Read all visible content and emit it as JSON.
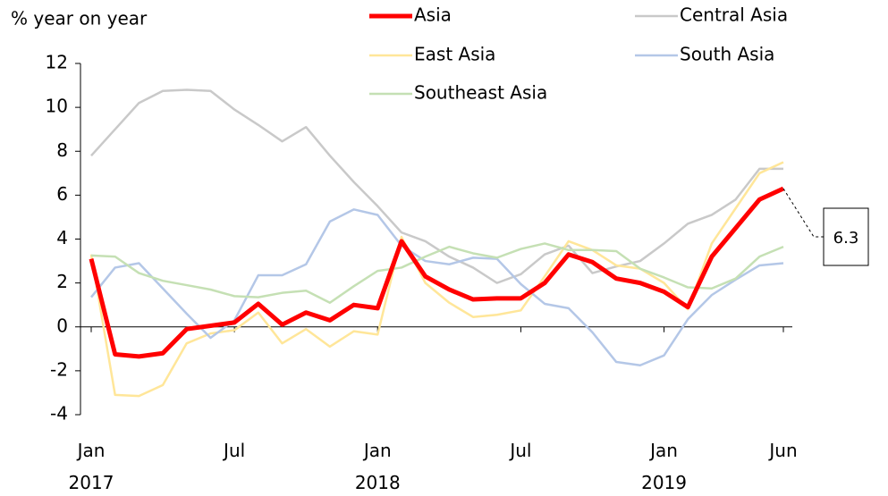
{
  "chart_data": {
    "type": "line",
    "y_label": "% year on year",
    "categories": [
      "Jan 2017",
      null,
      null,
      null,
      null,
      null,
      "Jul",
      null,
      null,
      null,
      null,
      null,
      "Jan 2018",
      null,
      null,
      null,
      null,
      null,
      "Jul",
      null,
      null,
      null,
      null,
      null,
      "Jan 2019",
      null,
      null,
      null,
      null,
      "Jun"
    ],
    "series": [
      {
        "name": "Asia",
        "color": "#ff0000",
        "values": [
          3.1,
          -1.25,
          -1.35,
          -1.2,
          -0.1,
          0.05,
          0.2,
          1.05,
          0.1,
          0.65,
          0.3,
          1.0,
          0.85,
          3.9,
          2.3,
          1.7,
          1.25,
          1.3,
          1.3,
          2.0,
          3.3,
          2.95,
          2.2,
          2.0,
          1.6,
          0.9,
          3.2,
          4.5,
          5.8,
          6.3
        ]
      },
      {
        "name": "Central Asia",
        "color": "#c9c9c9",
        "values": [
          7.8,
          9.0,
          10.2,
          10.75,
          10.8,
          10.75,
          9.9,
          9.2,
          8.45,
          9.1,
          7.8,
          6.6,
          5.5,
          4.3,
          3.9,
          3.2,
          2.7,
          2.0,
          2.4,
          3.3,
          3.7,
          2.45,
          2.75,
          3.0,
          3.8,
          4.7,
          5.1,
          5.8,
          7.2,
          7.2
        ]
      },
      {
        "name": "East Asia",
        "color": "#ffe699",
        "values": [
          3.3,
          -3.1,
          -3.15,
          -2.65,
          -0.75,
          -0.3,
          -0.15,
          0.65,
          -0.75,
          -0.1,
          -0.9,
          -0.2,
          -0.35,
          4.1,
          2.0,
          1.1,
          0.45,
          0.55,
          0.75,
          2.3,
          3.9,
          3.5,
          2.8,
          2.65,
          2.0,
          0.8,
          3.8,
          5.4,
          7.0,
          7.5
        ]
      },
      {
        "name": "South Asia",
        "color": "#b4c7e7",
        "values": [
          1.35,
          2.7,
          2.9,
          1.75,
          0.6,
          -0.5,
          0.3,
          2.35,
          2.35,
          2.85,
          4.8,
          5.35,
          5.1,
          3.7,
          3.0,
          2.85,
          3.15,
          3.1,
          1.95,
          1.05,
          0.85,
          -0.25,
          -1.6,
          -1.75,
          -1.3,
          0.35,
          1.45,
          2.15,
          2.8,
          2.9
        ]
      },
      {
        "name": "Southeast Asia",
        "color": "#c5e0b4",
        "values": [
          3.25,
          3.2,
          2.45,
          2.1,
          1.9,
          1.7,
          1.4,
          1.35,
          1.55,
          1.65,
          1.1,
          1.85,
          2.55,
          2.7,
          3.2,
          3.65,
          3.35,
          3.15,
          3.55,
          3.8,
          3.5,
          3.5,
          3.45,
          2.65,
          2.25,
          1.8,
          1.75,
          2.2,
          3.2,
          3.65
        ]
      }
    ],
    "ylim": [
      -4,
      12
    ],
    "yticks": [
      -4,
      -2,
      0,
      2,
      4,
      6,
      8,
      10,
      12
    ],
    "grid": false
  }
}
